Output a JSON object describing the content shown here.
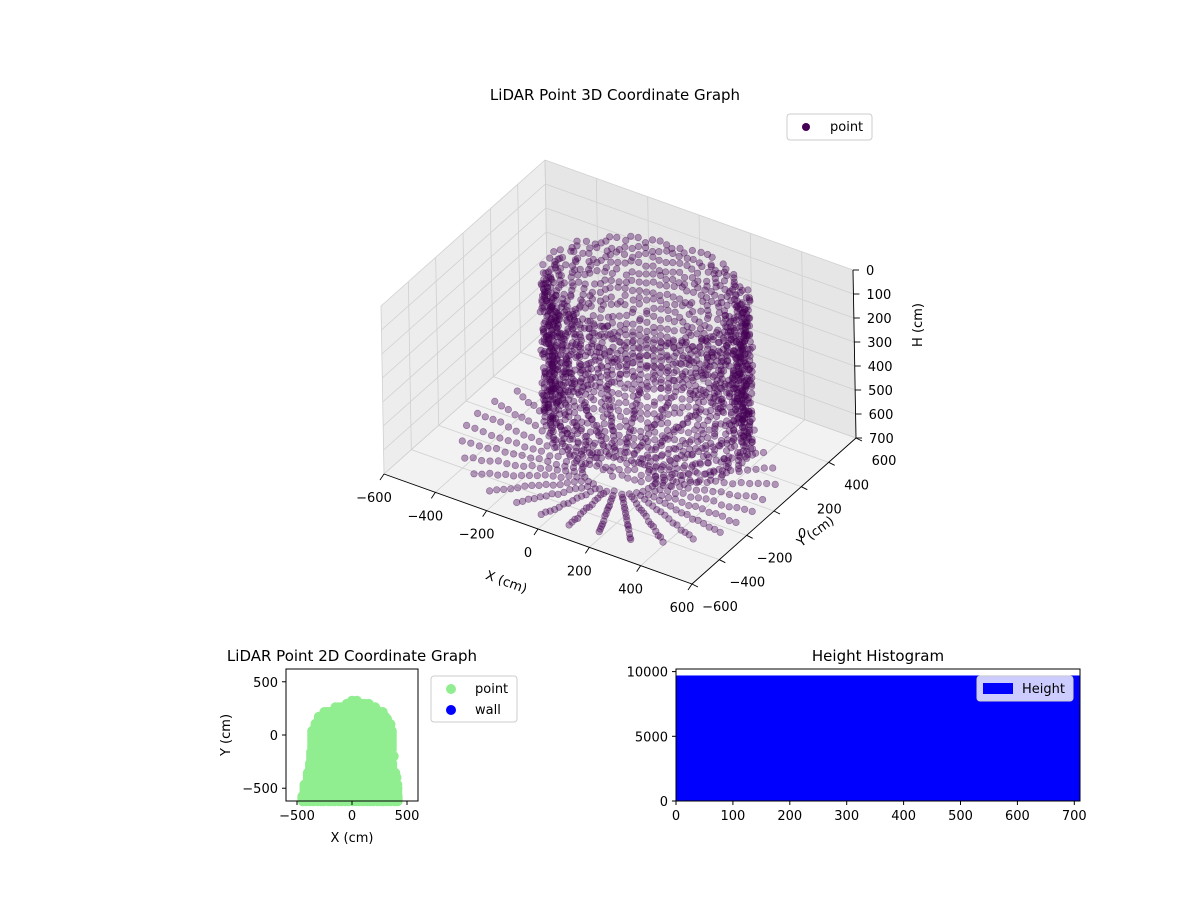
{
  "chart_data": [
    {
      "type": "scatter",
      "title": "LiDAR Point 3D Coordinate Graph",
      "xlabel": "X (cm)",
      "ylabel": "Y (cm)",
      "zlabel": "H (cm)",
      "xlim": [
        -600,
        600
      ],
      "ylim": [
        -600,
        600
      ],
      "zlim": [
        700,
        0
      ],
      "x_ticks": [
        "−600",
        "−400",
        "−200",
        "0",
        "200",
        "400",
        "600"
      ],
      "y_ticks": [
        "−600",
        "−400",
        "−200",
        "0",
        "200",
        "400",
        "600"
      ],
      "z_ticks": [
        "0",
        "100",
        "200",
        "300",
        "400",
        "500",
        "600",
        "700"
      ],
      "grid": true,
      "legend_position": "top-right",
      "series": [
        {
          "name": "point",
          "color": "#440154"
        }
      ]
    },
    {
      "type": "scatter",
      "title": "LiDAR Point 2D Coordinate Graph",
      "xlabel": "X (cm)",
      "ylabel": "Y (cm)",
      "xlim": [
        -600,
        600
      ],
      "ylim": [
        -620,
        620
      ],
      "x_ticks": [
        "−500",
        "0",
        "500"
      ],
      "y_ticks": [
        "−500",
        "0",
        "500"
      ],
      "legend_position": "outside right",
      "series": [
        {
          "name": "point",
          "color": "#90ee90"
        },
        {
          "name": "wall",
          "color": "#0000ff"
        }
      ]
    },
    {
      "type": "bar",
      "title": "Height Histogram",
      "xlim": [
        0,
        710
      ],
      "ylim": [
        0,
        10200
      ],
      "x_ticks": [
        "0",
        "100",
        "200",
        "300",
        "400",
        "500",
        "600",
        "700"
      ],
      "y_ticks": [
        "0",
        "5000",
        "10000"
      ],
      "legend_position": "top-right",
      "series": [
        {
          "name": "Height",
          "color": "#0000ff",
          "bins": [
            [
              0,
              710,
              9700
            ]
          ]
        }
      ]
    }
  ]
}
